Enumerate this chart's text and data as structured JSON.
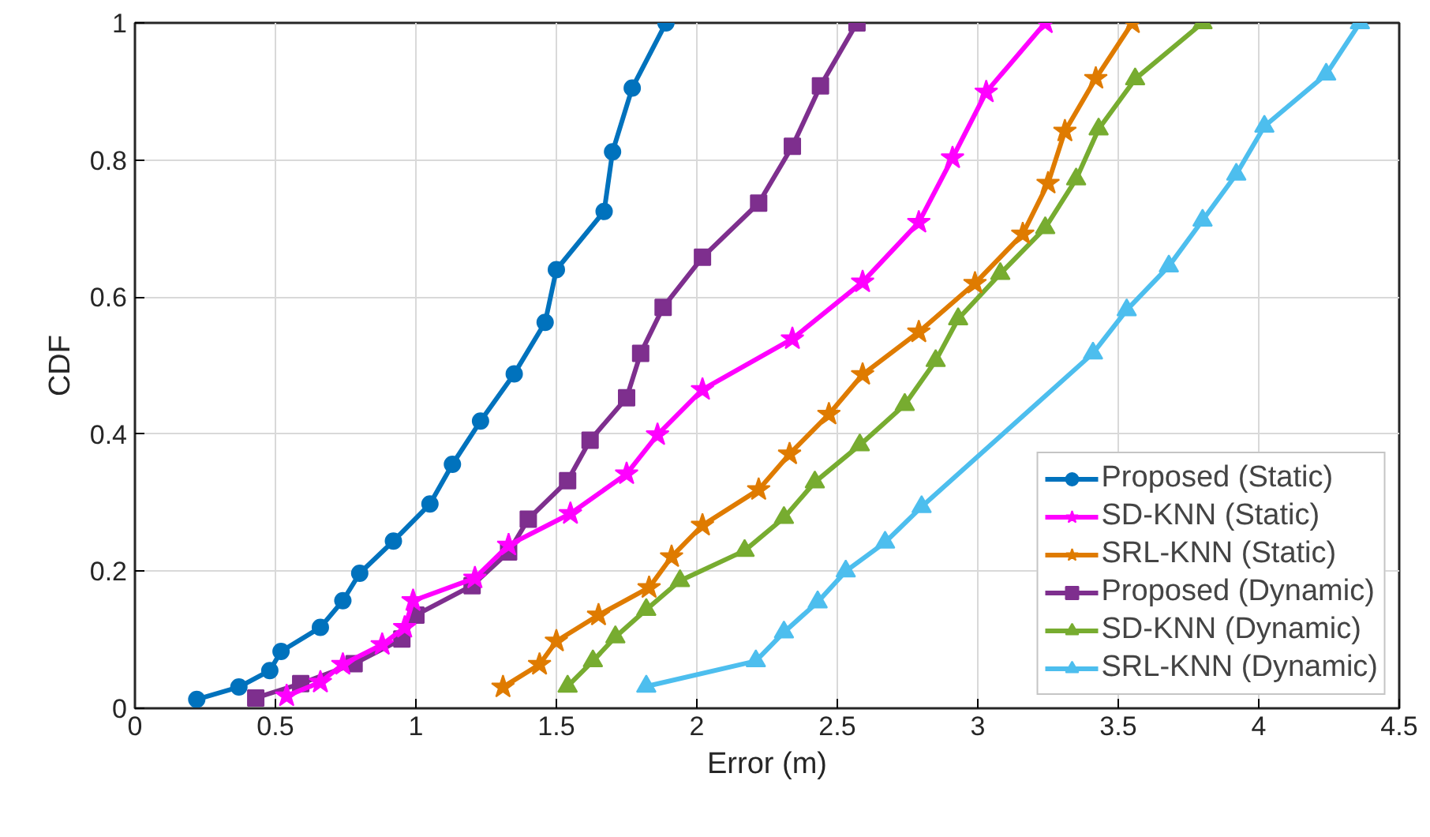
{
  "chart_data": {
    "type": "line",
    "xlabel": "Error (m)",
    "ylabel": "CDF",
    "xlim": [
      0,
      4.5
    ],
    "xticks": [
      0,
      0.5,
      1,
      1.5,
      2,
      2.5,
      3,
      3.5,
      4,
      4.5
    ],
    "ylim": [
      0,
      1
    ],
    "yticks": [
      0,
      0.2,
      0.4,
      0.6,
      0.8,
      1
    ],
    "grid": true,
    "legend": "bottom right",
    "line_style": "solid",
    "series": [
      {
        "name": "Proposed (Static)",
        "color": "#0072bd",
        "marker": "circle",
        "x": [
          0.22,
          0.37,
          0.48,
          0.52,
          0.66,
          0.74,
          0.8,
          0.92,
          1.05,
          1.13,
          1.23,
          1.35,
          1.46,
          1.5,
          1.67,
          1.7,
          1.77,
          1.89
        ],
        "values": [
          0.013,
          0.031,
          0.055,
          0.083,
          0.118,
          0.157,
          0.197,
          0.244,
          0.298,
          0.356,
          0.419,
          0.488,
          0.563,
          0.64,
          0.725,
          0.812,
          0.905,
          1.0
        ]
      },
      {
        "name": "SD-KNN (Static)",
        "color": "#ff00ff",
        "marker": "star",
        "x": [
          0.54,
          0.66,
          0.74,
          0.88,
          0.96,
          0.99,
          1.21,
          1.33,
          1.55,
          1.75,
          1.86,
          2.02,
          2.34,
          2.59,
          2.79,
          2.91,
          3.03,
          3.24
        ],
        "values": [
          0.018,
          0.038,
          0.064,
          0.093,
          0.118,
          0.157,
          0.19,
          0.238,
          0.284,
          0.342,
          0.399,
          0.465,
          0.539,
          0.622,
          0.709,
          0.803,
          0.899,
          1.0
        ]
      },
      {
        "name": "SRL-KNN (Static)",
        "color": "#df7b00",
        "marker": "star",
        "x": [
          1.31,
          1.44,
          1.5,
          1.65,
          1.83,
          1.91,
          2.02,
          2.22,
          2.33,
          2.47,
          2.59,
          2.79,
          2.99,
          3.16,
          3.25,
          3.31,
          3.42,
          3.55
        ],
        "values": [
          0.031,
          0.064,
          0.098,
          0.136,
          0.176,
          0.221,
          0.267,
          0.319,
          0.371,
          0.429,
          0.487,
          0.549,
          0.62,
          0.692,
          0.766,
          0.842,
          0.919,
          1.0
        ]
      },
      {
        "name": "Proposed (Dynamic)",
        "color": "#7e2f8e",
        "marker": "square",
        "x": [
          0.43,
          0.59,
          0.78,
          0.95,
          1.0,
          1.2,
          1.33,
          1.4,
          1.54,
          1.62,
          1.75,
          1.8,
          1.88,
          2.02,
          2.22,
          2.34,
          2.44,
          2.57
        ],
        "values": [
          0.015,
          0.036,
          0.065,
          0.101,
          0.136,
          0.179,
          0.228,
          0.276,
          0.332,
          0.391,
          0.453,
          0.518,
          0.585,
          0.658,
          0.737,
          0.82,
          0.908,
          1.0
        ]
      },
      {
        "name": "SD-KNN (Dynamic)",
        "color": "#77ac30",
        "marker": "triangle",
        "x": [
          1.54,
          1.63,
          1.71,
          1.82,
          1.94,
          2.17,
          2.31,
          2.42,
          2.58,
          2.74,
          2.85,
          2.93,
          3.08,
          3.24,
          3.35,
          3.43,
          3.56,
          3.8
        ],
        "values": [
          0.032,
          0.069,
          0.104,
          0.144,
          0.186,
          0.23,
          0.278,
          0.33,
          0.384,
          0.443,
          0.507,
          0.568,
          0.634,
          0.701,
          0.772,
          0.845,
          0.918,
          1.0
        ]
      },
      {
        "name": "SRL-KNN (Dynamic)",
        "color": "#4dbeee",
        "marker": "triangle",
        "x": [
          1.82,
          2.21,
          2.31,
          2.43,
          2.53,
          2.67,
          2.8,
          3.41,
          3.53,
          3.68,
          3.8,
          3.92,
          4.02,
          4.24,
          4.36
        ],
        "values": [
          0.032,
          0.069,
          0.111,
          0.155,
          0.2,
          0.242,
          0.294,
          0.518,
          0.581,
          0.645,
          0.712,
          0.779,
          0.849,
          0.925,
          1.0
        ]
      }
    ]
  }
}
